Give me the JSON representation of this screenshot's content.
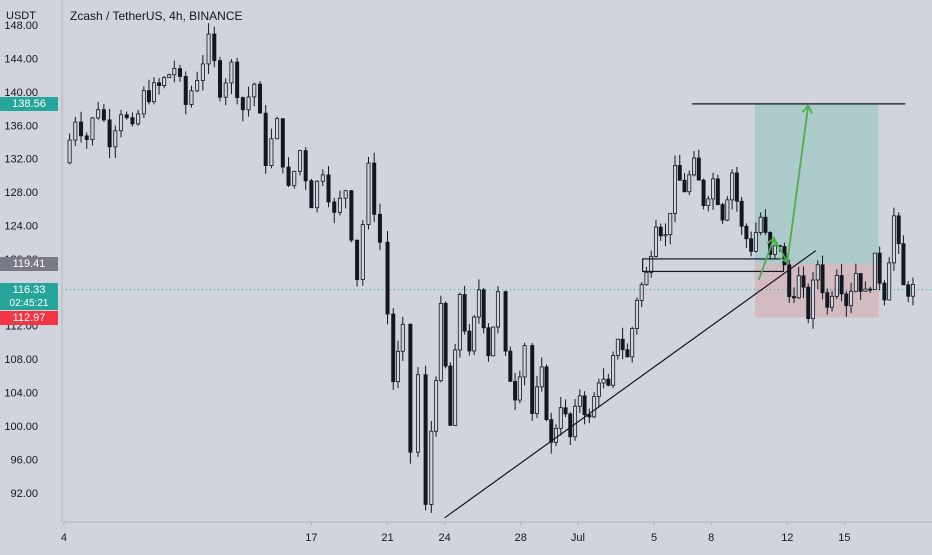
{
  "header": {
    "currency": "USDT",
    "title": "Zcash / TetherUS, 4h, BINANCE"
  },
  "price_tags": {
    "target": "138.56",
    "entry": "119.41",
    "current": "116.33",
    "countdown": "02:45:21",
    "stop": "112.97"
  },
  "colors": {
    "background": "#d1d4dc",
    "up": "#26a69a",
    "down": "#ef5350",
    "candle": "#131722",
    "target_zone": "#a7c9c7",
    "stop_zone": "#d4b7bc",
    "arrow": "#4caf50",
    "current_line": "#26a69a",
    "target_tag": "#26a69a",
    "entry_tag": "#787b86",
    "current_tag": "#26a69a",
    "stop_tag": "#f23645"
  },
  "chart_data": {
    "type": "candlestick",
    "title": "Zcash / TetherUS, 4h, BINANCE",
    "y_ticks": [
      92,
      96,
      100,
      104,
      108,
      112,
      116,
      120,
      124,
      128,
      132,
      136,
      140,
      144,
      148
    ],
    "y_tick_labels": [
      "92.00",
      "96.00",
      "100.00",
      "104.00",
      "108.00",
      "112.00",
      "116.00",
      "120.00",
      "124.00",
      "128.00",
      "132.00",
      "136.00",
      "140.00",
      "144.00",
      "148.00"
    ],
    "ylim": [
      88.5,
      151
    ],
    "x_ticks": [
      {
        "label": "4",
        "x": 0
      },
      {
        "label": "17",
        "x": 13
      },
      {
        "label": "21",
        "x": 17
      },
      {
        "label": "24",
        "x": 20
      },
      {
        "label": "28",
        "x": 24
      },
      {
        "label": "Jul",
        "x": 27
      },
      {
        "label": "5",
        "x": 31
      },
      {
        "label": "8",
        "x": 34
      },
      {
        "label": "12",
        "x": 38
      },
      {
        "label": "15",
        "x": 41
      }
    ],
    "xlim": [
      -0.1,
      45.6
    ],
    "candle_points": [
      [
        0,
        131.5
      ],
      [
        0.6,
        137
      ],
      [
        1.2,
        134.5
      ],
      [
        1.8,
        138.5
      ],
      [
        2.4,
        134.5
      ],
      [
        3.0,
        138
      ],
      [
        3.6,
        135
      ],
      [
        4.2,
        139.5
      ],
      [
        5.0,
        140.5
      ],
      [
        5.8,
        143
      ],
      [
        6.4,
        138.5
      ],
      [
        7.0,
        142
      ],
      [
        7.6,
        145.8
      ],
      [
        8.2,
        140.5
      ],
      [
        8.8,
        143
      ],
      [
        9.4,
        138
      ],
      [
        10.0,
        141
      ],
      [
        10.6,
        132
      ],
      [
        11.2,
        136
      ],
      [
        11.8,
        128
      ],
      [
        12.4,
        133
      ],
      [
        13.0,
        127
      ],
      [
        13.6,
        131
      ],
      [
        14.2,
        125
      ],
      [
        14.8,
        128.5
      ],
      [
        15.4,
        118
      ],
      [
        16.0,
        130.5
      ],
      [
        16.6,
        122
      ],
      [
        17.0,
        113.5
      ],
      [
        17.3,
        105.5
      ],
      [
        17.8,
        111
      ],
      [
        18.2,
        97
      ],
      [
        18.6,
        106
      ],
      [
        19.0,
        90
      ],
      [
        19.3,
        99.5
      ],
      [
        19.8,
        113.5
      ],
      [
        20.3,
        100
      ],
      [
        20.8,
        116
      ],
      [
        21.3,
        108
      ],
      [
        21.8,
        116.5
      ],
      [
        22.3,
        109
      ],
      [
        22.8,
        115.5
      ],
      [
        23.2,
        108
      ],
      [
        23.7,
        104
      ],
      [
        24.2,
        110
      ],
      [
        24.6,
        101.5
      ],
      [
        25.1,
        106
      ],
      [
        25.6,
        97.5
      ],
      [
        26.1,
        103
      ],
      [
        26.6,
        98.5
      ],
      [
        27.1,
        104
      ],
      [
        27.6,
        100.5
      ],
      [
        28.1,
        106
      ],
      [
        28.6,
        104
      ],
      [
        29.1,
        111
      ],
      [
        29.6,
        108
      ],
      [
        30.1,
        115.5
      ],
      [
        30.6,
        118
      ],
      [
        31.1,
        125
      ],
      [
        31.6,
        122.5
      ],
      [
        32.1,
        130
      ],
      [
        32.6,
        128.5
      ],
      [
        33.1,
        131
      ],
      [
        33.6,
        127
      ],
      [
        34.1,
        129.5
      ],
      [
        34.6,
        125.5
      ],
      [
        35.1,
        130.5
      ],
      [
        35.6,
        123.5
      ],
      [
        36.1,
        121.5
      ],
      [
        36.6,
        125
      ],
      [
        37.1,
        120
      ],
      [
        37.6,
        122
      ],
      [
        38.1,
        115.5
      ],
      [
        38.6,
        117.5
      ],
      [
        39.1,
        113.5
      ],
      [
        39.6,
        119.5
      ],
      [
        40.1,
        114
      ],
      [
        40.6,
        119
      ],
      [
        41.1,
        115
      ],
      [
        41.6,
        118.5
      ],
      [
        42.1,
        115.5
      ],
      [
        42.6,
        119.5
      ],
      [
        43.1,
        116
      ],
      [
        43.6,
        125
      ],
      [
        44.1,
        116.5
      ],
      [
        44.6,
        116.33
      ]
    ],
    "annotations": {
      "target_level": 138.56,
      "entry_level": 119.41,
      "stop_level": 112.97,
      "current_price": 116.33
    }
  }
}
